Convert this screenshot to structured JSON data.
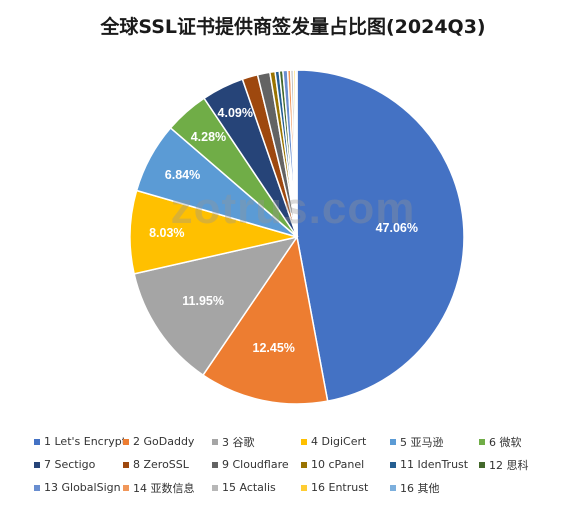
{
  "title": "全球SSL证书提供商签发量占比图(2024Q3)",
  "watermark": "zotrus.com",
  "chart_data": {
    "type": "pie",
    "title": "全球SSL证书提供商签发量占比图(2024Q3)",
    "legend_position": "bottom",
    "slices": [
      {
        "label": "1 Let's Encrypt",
        "value": 47.06,
        "value_label": "47.06%",
        "color": "#4472C4"
      },
      {
        "label": "2 GoDaddy",
        "value": 12.45,
        "value_label": "12.45%",
        "color": "#ED7D31"
      },
      {
        "label": "3 谷歌",
        "value": 11.95,
        "value_label": "11.95%",
        "color": "#A5A5A5"
      },
      {
        "label": "4 DigiCert",
        "value": 8.03,
        "value_label": "8.03%",
        "color": "#FFC000"
      },
      {
        "label": "5 亚马逊",
        "value": 6.84,
        "value_label": "6.84%",
        "color": "#5B9BD5"
      },
      {
        "label": "6 微软",
        "value": 4.28,
        "value_label": "4.28%",
        "color": "#70AD47"
      },
      {
        "label": "7 Sectigo",
        "value": 4.09,
        "value_label": "4.09%",
        "color": "#264478"
      },
      {
        "label": "8 ZeroSSL",
        "value": 1.5,
        "value_label": "",
        "color": "#9E480E"
      },
      {
        "label": "9 Cloudflare",
        "value": 1.2,
        "value_label": "",
        "color": "#636363"
      },
      {
        "label": "10 cPanel",
        "value": 0.5,
        "value_label": "",
        "color": "#997300"
      },
      {
        "label": "11 IdenTrust",
        "value": 0.4,
        "value_label": "",
        "color": "#255E91"
      },
      {
        "label": "12 思科",
        "value": 0.35,
        "value_label": "",
        "color": "#43682B"
      },
      {
        "label": "13 GlobalSign",
        "value": 0.45,
        "value_label": "",
        "color": "#698ED0"
      },
      {
        "label": "14 亚数信息",
        "value": 0.3,
        "value_label": "",
        "color": "#F1975A"
      },
      {
        "label": "15 Actalis",
        "value": 0.25,
        "value_label": "",
        "color": "#B7B7B7"
      },
      {
        "label": "16 Entrust",
        "value": 0.2,
        "value_label": "",
        "color": "#FFCD33"
      },
      {
        "label": "16 其他",
        "value": 0.15,
        "value_label": "",
        "color": "#7CAFDD"
      }
    ]
  }
}
